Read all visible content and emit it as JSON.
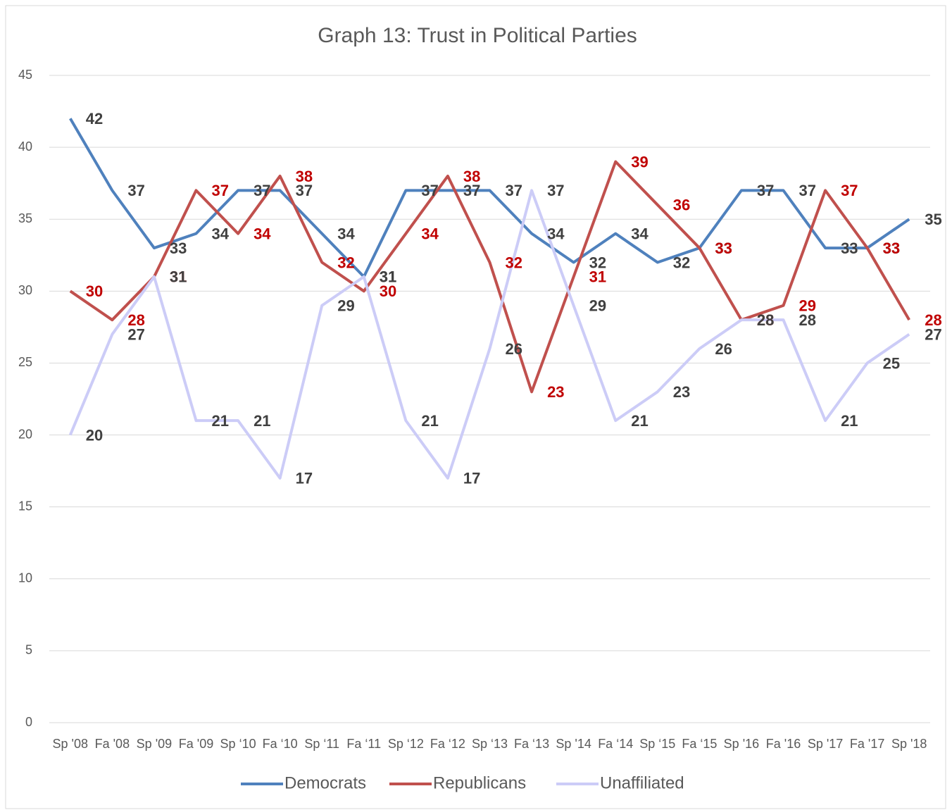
{
  "chart_data": {
    "type": "line",
    "title": "Graph 13: Trust in Political Parties",
    "categories": [
      "Sp '08",
      "Fa '08",
      "Sp '09",
      "Fa '09",
      "Sp ‘10",
      "Fa ‘10",
      "Sp ‘11",
      "Fa ‘11",
      "Sp ‘12",
      "Fa ‘12",
      "Sp ‘13",
      "Fa ‘13",
      "Sp '14",
      "Fa ‘14",
      "Sp ‘15",
      "Fa ‘15",
      "Sp '16",
      "Fa '16",
      "Sp '17",
      "Fa '17",
      "Sp '18"
    ],
    "series": [
      {
        "name": "Democrats",
        "color": "#4f81bd",
        "label_color": "#404040",
        "values": [
          42,
          37,
          33,
          34,
          37,
          37,
          34,
          31,
          37,
          37,
          37,
          34,
          32,
          34,
          32,
          33,
          37,
          37,
          33,
          33,
          35
        ]
      },
      {
        "name": "Republicans",
        "color": "#c0504d",
        "label_color": "#c00000",
        "values": [
          30,
          28,
          31,
          37,
          34,
          38,
          32,
          30,
          34,
          38,
          32,
          23,
          31,
          39,
          36,
          33,
          28,
          29,
          37,
          33,
          28
        ]
      },
      {
        "name": "Unaffiliated",
        "color": "#ccccf7",
        "label_color": "#404040",
        "values": [
          20,
          27,
          31,
          21,
          21,
          17,
          29,
          31,
          21,
          17,
          26,
          37,
          29,
          21,
          23,
          26,
          28,
          28,
          21,
          25,
          27
        ]
      }
    ],
    "ylim": [
      0,
      45
    ],
    "yticks": [
      0,
      5,
      10,
      15,
      20,
      25,
      30,
      35,
      40,
      45
    ],
    "grid": true,
    "legend": "bottom"
  }
}
